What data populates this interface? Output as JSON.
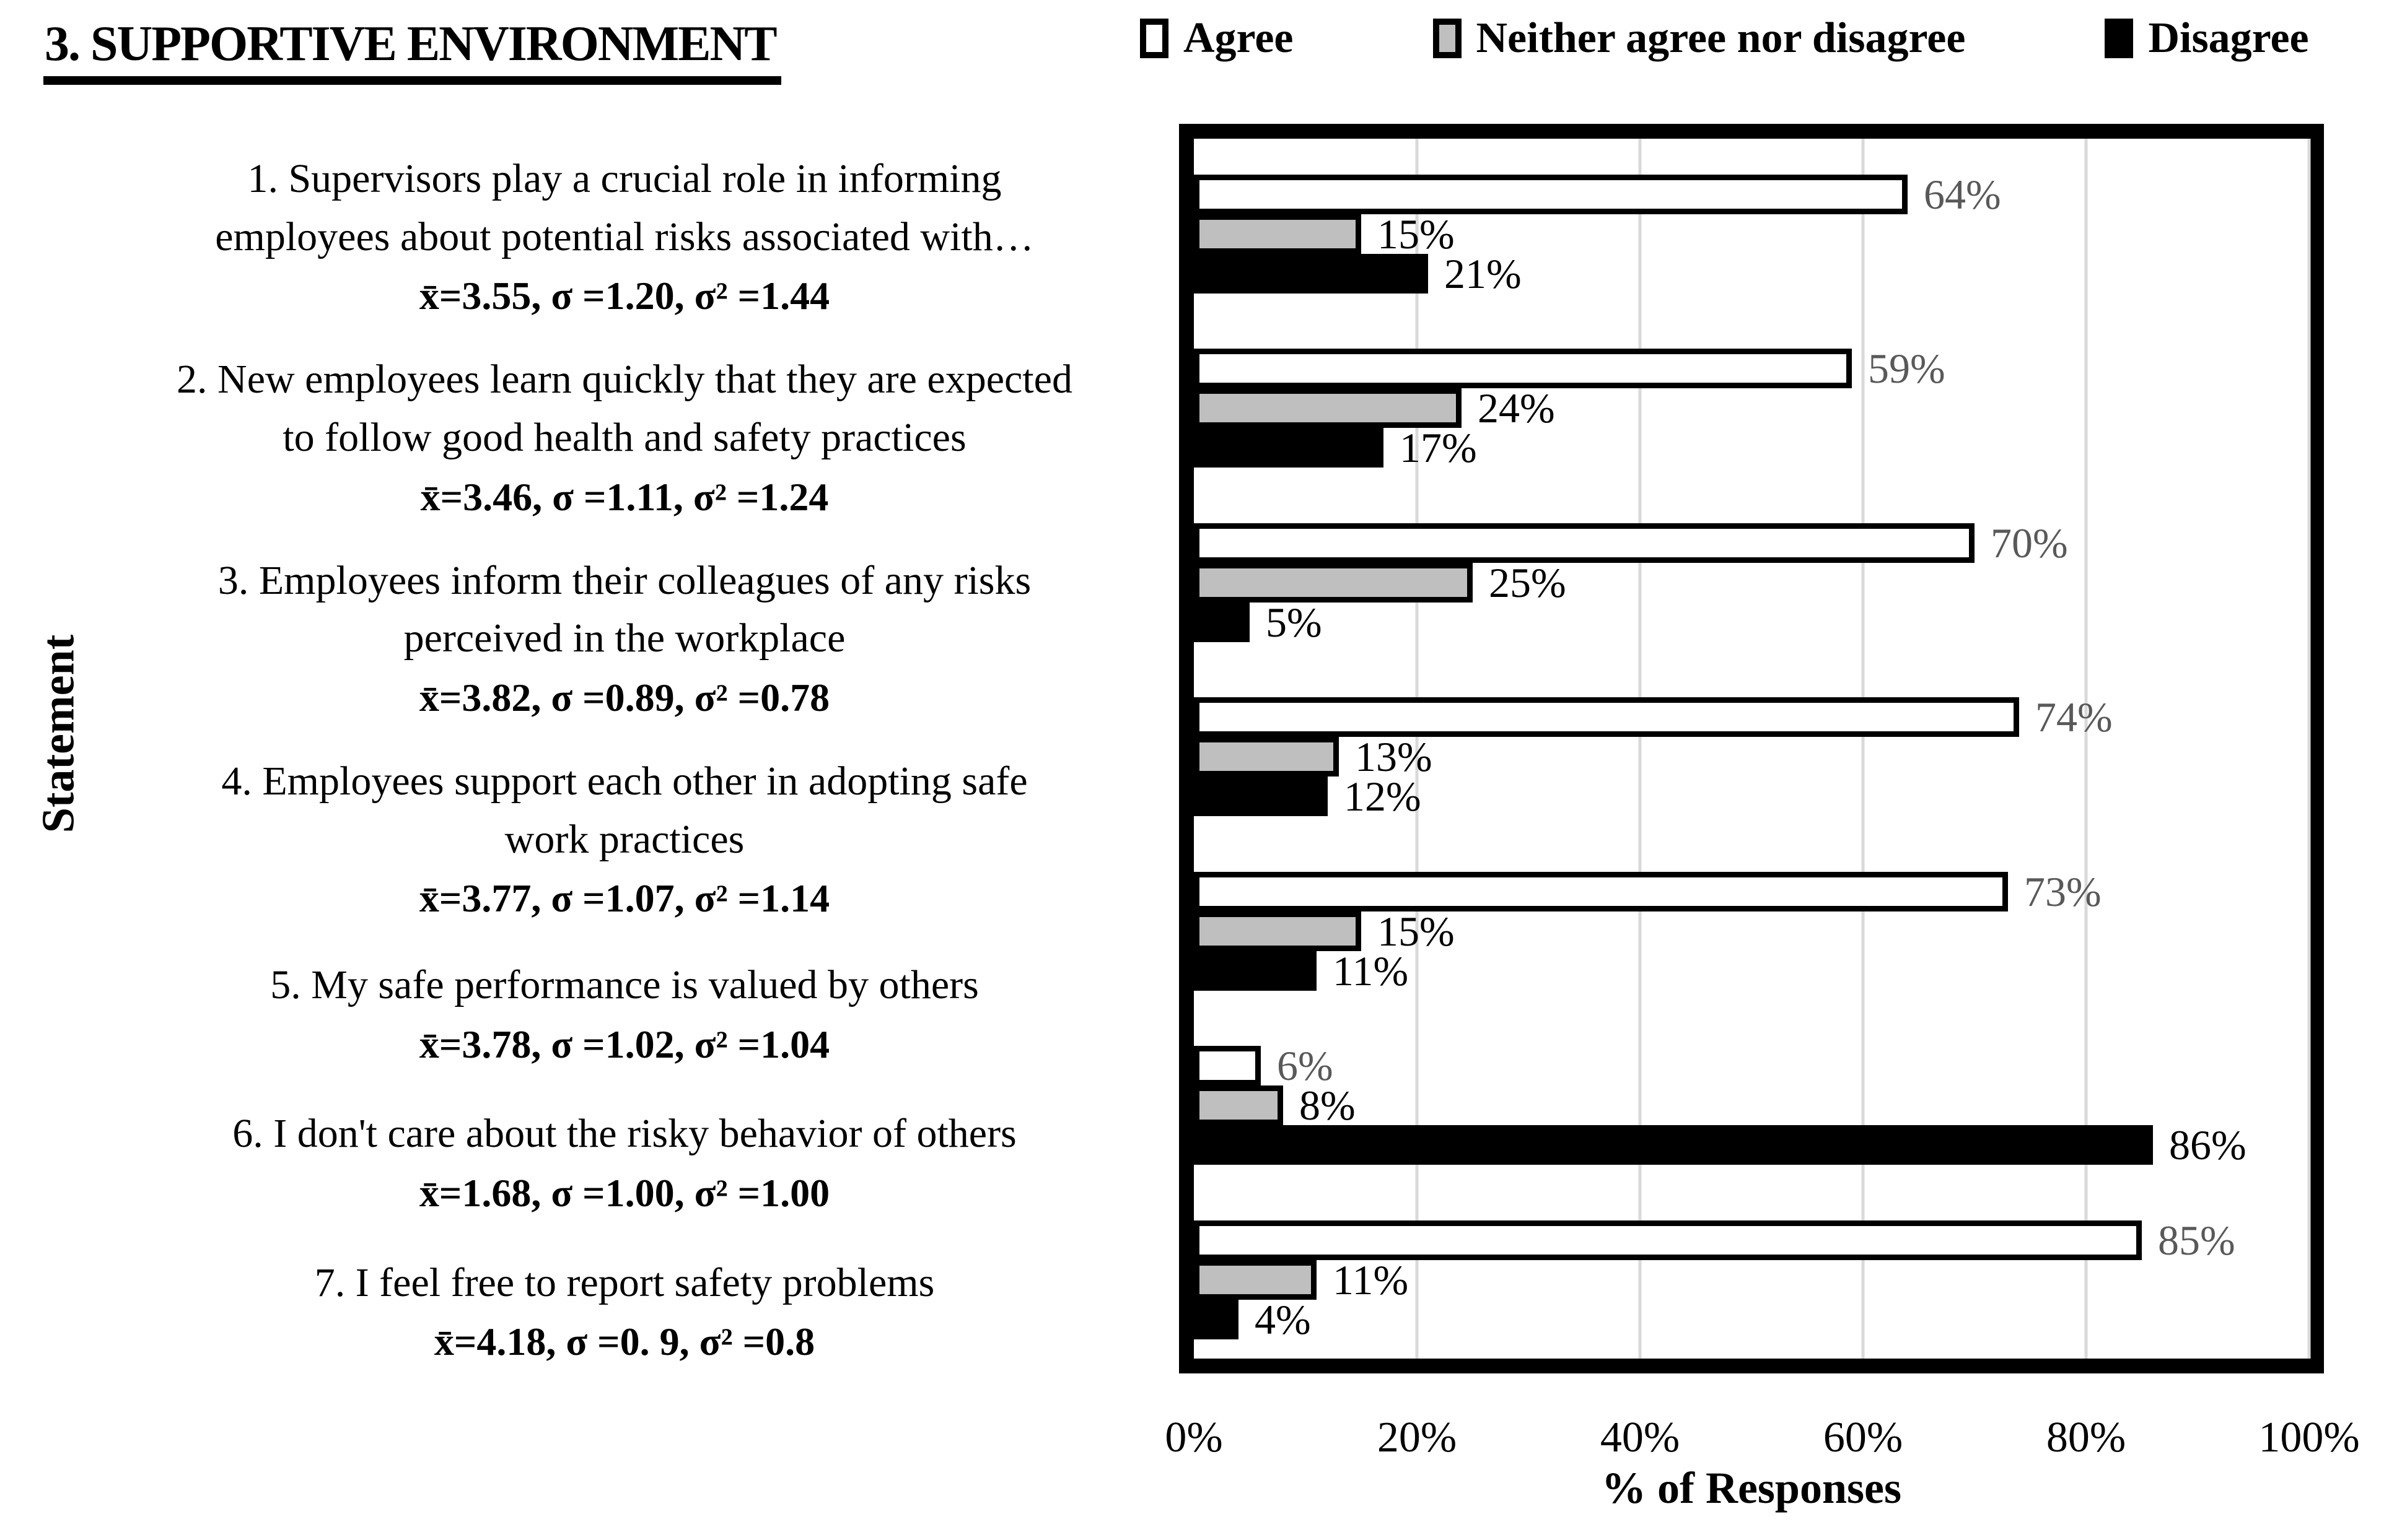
{
  "title": "3. SUPPORTIVE ENVIRONMENT",
  "legend": [
    {
      "label": "Agree",
      "fill": "#FFFFFF",
      "border": "#000000"
    },
    {
      "label": "Neither agree nor disagree",
      "fill": "#BFBFBF",
      "border": "#000000"
    },
    {
      "label": "Disagree",
      "fill": "#000000",
      "border": "#000000"
    }
  ],
  "colors": {
    "agree_fill": "#FFFFFF",
    "neither_fill": "#BFBFBF",
    "disagree_fill": "#000000",
    "bar_border": "#000000",
    "gridline": "#D9D9D9",
    "agree_label_text": "#595959",
    "other_label_text": "#000000"
  },
  "chart_data": {
    "type": "bar",
    "orientation": "horizontal",
    "title": "3. SUPPORTIVE ENVIRONMENT",
    "xlabel": "% of Responses",
    "ylabel": "Statement",
    "xlim": [
      0,
      100
    ],
    "xticks": [
      "0%",
      "20%",
      "40%",
      "60%",
      "80%",
      "100%"
    ],
    "grid": true,
    "legend_position": "top-right",
    "categories": [
      {
        "lines": [
          "1. Supervisors play a crucial role in informing",
          "employees about potential risks associated with…"
        ],
        "stats": "x̄=3.55, σ =1.20, σ² =1.44"
      },
      {
        "lines": [
          "2. New employees learn quickly that they are expected",
          "to follow good health and safety practices"
        ],
        "stats": "x̄=3.46, σ =1.11, σ² =1.24"
      },
      {
        "lines": [
          "3. Employees inform their colleagues of any risks",
          "perceived in the workplace"
        ],
        "stats": "x̄=3.82, σ =0.89, σ² =0.78"
      },
      {
        "lines": [
          "4. Employees support each other in adopting safe",
          "work practices"
        ],
        "stats": "x̄=3.77, σ =1.07, σ² =1.14"
      },
      {
        "lines": [
          "5. My safe performance is valued by others"
        ],
        "stats": "x̄=3.78, σ =1.02, σ² =1.04"
      },
      {
        "lines": [
          "6. I don't care about the risky behavior of others"
        ],
        "stats": "x̄=1.68, σ =1.00, σ² =1.00"
      },
      {
        "lines": [
          "7. I feel free to report safety problems"
        ],
        "stats": "x̄=4.18, σ =0. 9, σ² =0.8"
      }
    ],
    "series": [
      {
        "name": "Agree",
        "values": [
          64,
          59,
          70,
          74,
          73,
          6,
          85
        ],
        "labels": [
          "64%",
          "59%",
          "70%",
          "74%",
          "73%",
          "6%",
          "85%"
        ]
      },
      {
        "name": "Neither agree nor disagree",
        "values": [
          15,
          24,
          25,
          13,
          15,
          8,
          11
        ],
        "labels": [
          "15%",
          "24%",
          "25%",
          "13%",
          "15%",
          "8%",
          "11%"
        ]
      },
      {
        "name": "Disagree",
        "values": [
          21,
          17,
          5,
          12,
          11,
          86,
          4
        ],
        "labels": [
          "21%",
          "17%",
          "5%",
          "12%",
          "11%",
          "86%",
          "4%"
        ]
      }
    ]
  }
}
